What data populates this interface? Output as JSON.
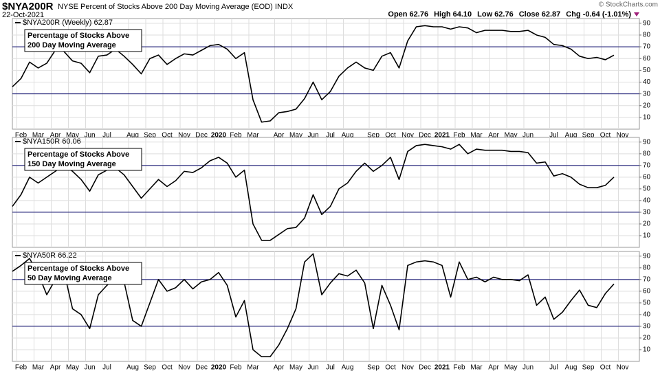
{
  "header": {
    "symbol": "$NYA200R",
    "title": "NYSE Percent of Stocks Above 200 Day Moving Average (EOD) INDX",
    "date": "22-Oct-2021",
    "quote": [
      "Open 62.76",
      "High 64.10",
      "Low 62.76",
      "Close 62.87",
      "Chg -0.64 (-1.01%)"
    ],
    "credit": "© StockCharts.com"
  },
  "chart_data": [
    {
      "type": "line",
      "label": "$NYA200R (Weekly) 62.87",
      "annotation": [
        "Percentage of Stocks Above",
        "200 Day Moving Average"
      ],
      "categories": [
        null,
        "Feb",
        null,
        "Mar",
        null,
        "Apr",
        null,
        "May",
        null,
        "Jun",
        null,
        "Jul",
        null,
        null,
        "Aug",
        null,
        "Sep",
        null,
        "Oct",
        null,
        "Nov",
        null,
        "Dec",
        null,
        "2020",
        null,
        "Feb",
        null,
        "Mar",
        null,
        null,
        "Apr",
        null,
        "May",
        null,
        "Jun",
        null,
        "Jul",
        null,
        "Aug",
        null,
        null,
        "Sep",
        null,
        "Oct",
        null,
        "Nov",
        null,
        "Dec",
        null,
        "2021",
        null,
        "Feb",
        null,
        "Mar",
        null,
        "Apr",
        null,
        "May",
        null,
        "Jun",
        null,
        null,
        "Jul",
        null,
        "Aug",
        null,
        "Sep",
        null,
        "Oct",
        null,
        "Nov"
      ],
      "values": [
        36,
        43,
        57,
        52,
        56,
        67,
        66,
        58,
        56,
        48,
        62,
        63,
        68,
        62,
        55,
        47,
        60,
        63,
        55,
        60,
        64,
        63,
        67,
        71,
        72,
        68,
        60,
        65,
        25,
        6,
        7,
        14,
        15,
        17,
        26,
        40,
        25,
        32,
        45,
        52,
        57,
        52,
        50,
        62,
        65,
        52,
        75,
        87,
        88,
        87,
        87,
        85,
        87,
        86,
        82,
        84,
        84,
        84,
        83,
        83,
        84,
        80,
        78,
        72,
        71,
        68,
        62,
        60,
        61,
        59,
        62.87,
        null
      ],
      "color": "#000000",
      "ylim": [
        0,
        94
      ],
      "yticks": [
        10,
        20,
        30,
        40,
        50,
        60,
        70,
        80,
        90
      ],
      "reference_lines": [
        30,
        70
      ],
      "reference_color": "#000066",
      "grid": true
    },
    {
      "type": "line",
      "label": "$NYA150R 60.06",
      "annotation": [
        "Percentage of Stocks Above",
        "150 Day Moving Average"
      ],
      "values": [
        35,
        45,
        60,
        55,
        60,
        65,
        70,
        65,
        58,
        48,
        62,
        66,
        68,
        62,
        52,
        42,
        50,
        58,
        52,
        57,
        65,
        64,
        68,
        74,
        77,
        72,
        60,
        66,
        20,
        6,
        6,
        11,
        16,
        17,
        25,
        45,
        28,
        35,
        50,
        55,
        65,
        72,
        65,
        70,
        77,
        58,
        82,
        87,
        88,
        87,
        86,
        84,
        88,
        80,
        84,
        83,
        83,
        83,
        82,
        82,
        81,
        72,
        73,
        61,
        63,
        60,
        54,
        51,
        51,
        53,
        60.06
      ],
      "color": "#000000",
      "ylim": [
        0,
        94
      ],
      "yticks": [
        10,
        20,
        30,
        40,
        50,
        60,
        70,
        80,
        90
      ],
      "reference_lines": [
        30,
        70
      ],
      "reference_color": "#000066",
      "grid": true
    },
    {
      "type": "line",
      "label": "$NYA50R 66.22",
      "annotation": [
        "Percentage of Stocks Above",
        "50 Day Moving Average"
      ],
      "categories": [
        null,
        "Feb",
        null,
        "Mar",
        null,
        "Apr",
        null,
        "May",
        null,
        "Jun",
        null,
        "Jul",
        null,
        null,
        "Aug",
        null,
        "Sep",
        null,
        "Oct",
        null,
        "Nov",
        null,
        "Dec",
        null,
        "2020",
        null,
        "Feb",
        null,
        "Mar",
        null,
        null,
        "Apr",
        null,
        "May",
        null,
        "Jun",
        null,
        "Jul",
        null,
        "Aug",
        null,
        null,
        "Sep",
        null,
        "Oct",
        null,
        "Nov",
        null,
        "Dec",
        null,
        "2021",
        null,
        "Feb",
        null,
        "Mar",
        null,
        "Apr",
        null,
        "May",
        null,
        "Jun",
        null,
        null,
        "Jul",
        null,
        "Aug",
        null,
        "Sep",
        null,
        "Oct",
        null,
        "Nov"
      ],
      "values": [
        77,
        82,
        88,
        75,
        57,
        70,
        77,
        45,
        40,
        28,
        57,
        65,
        72,
        68,
        35,
        30,
        50,
        70,
        60,
        63,
        70,
        62,
        68,
        70,
        76,
        65,
        38,
        52,
        10,
        4,
        4,
        14,
        28,
        45,
        85,
        92,
        57,
        67,
        75,
        73,
        78,
        67,
        28,
        65,
        48,
        27,
        82,
        85,
        86,
        85,
        82,
        55,
        85,
        70,
        72,
        68,
        72,
        70,
        70,
        69,
        74,
        48,
        55,
        36,
        42,
        52,
        61,
        48,
        46,
        58,
        66.22,
        null
      ],
      "color": "#000000",
      "ylim": [
        0,
        94
      ],
      "yticks": [
        10,
        20,
        30,
        40,
        50,
        60,
        70,
        80,
        90
      ],
      "reference_lines": [
        30,
        70
      ],
      "reference_color": "#000066",
      "grid": true
    }
  ]
}
